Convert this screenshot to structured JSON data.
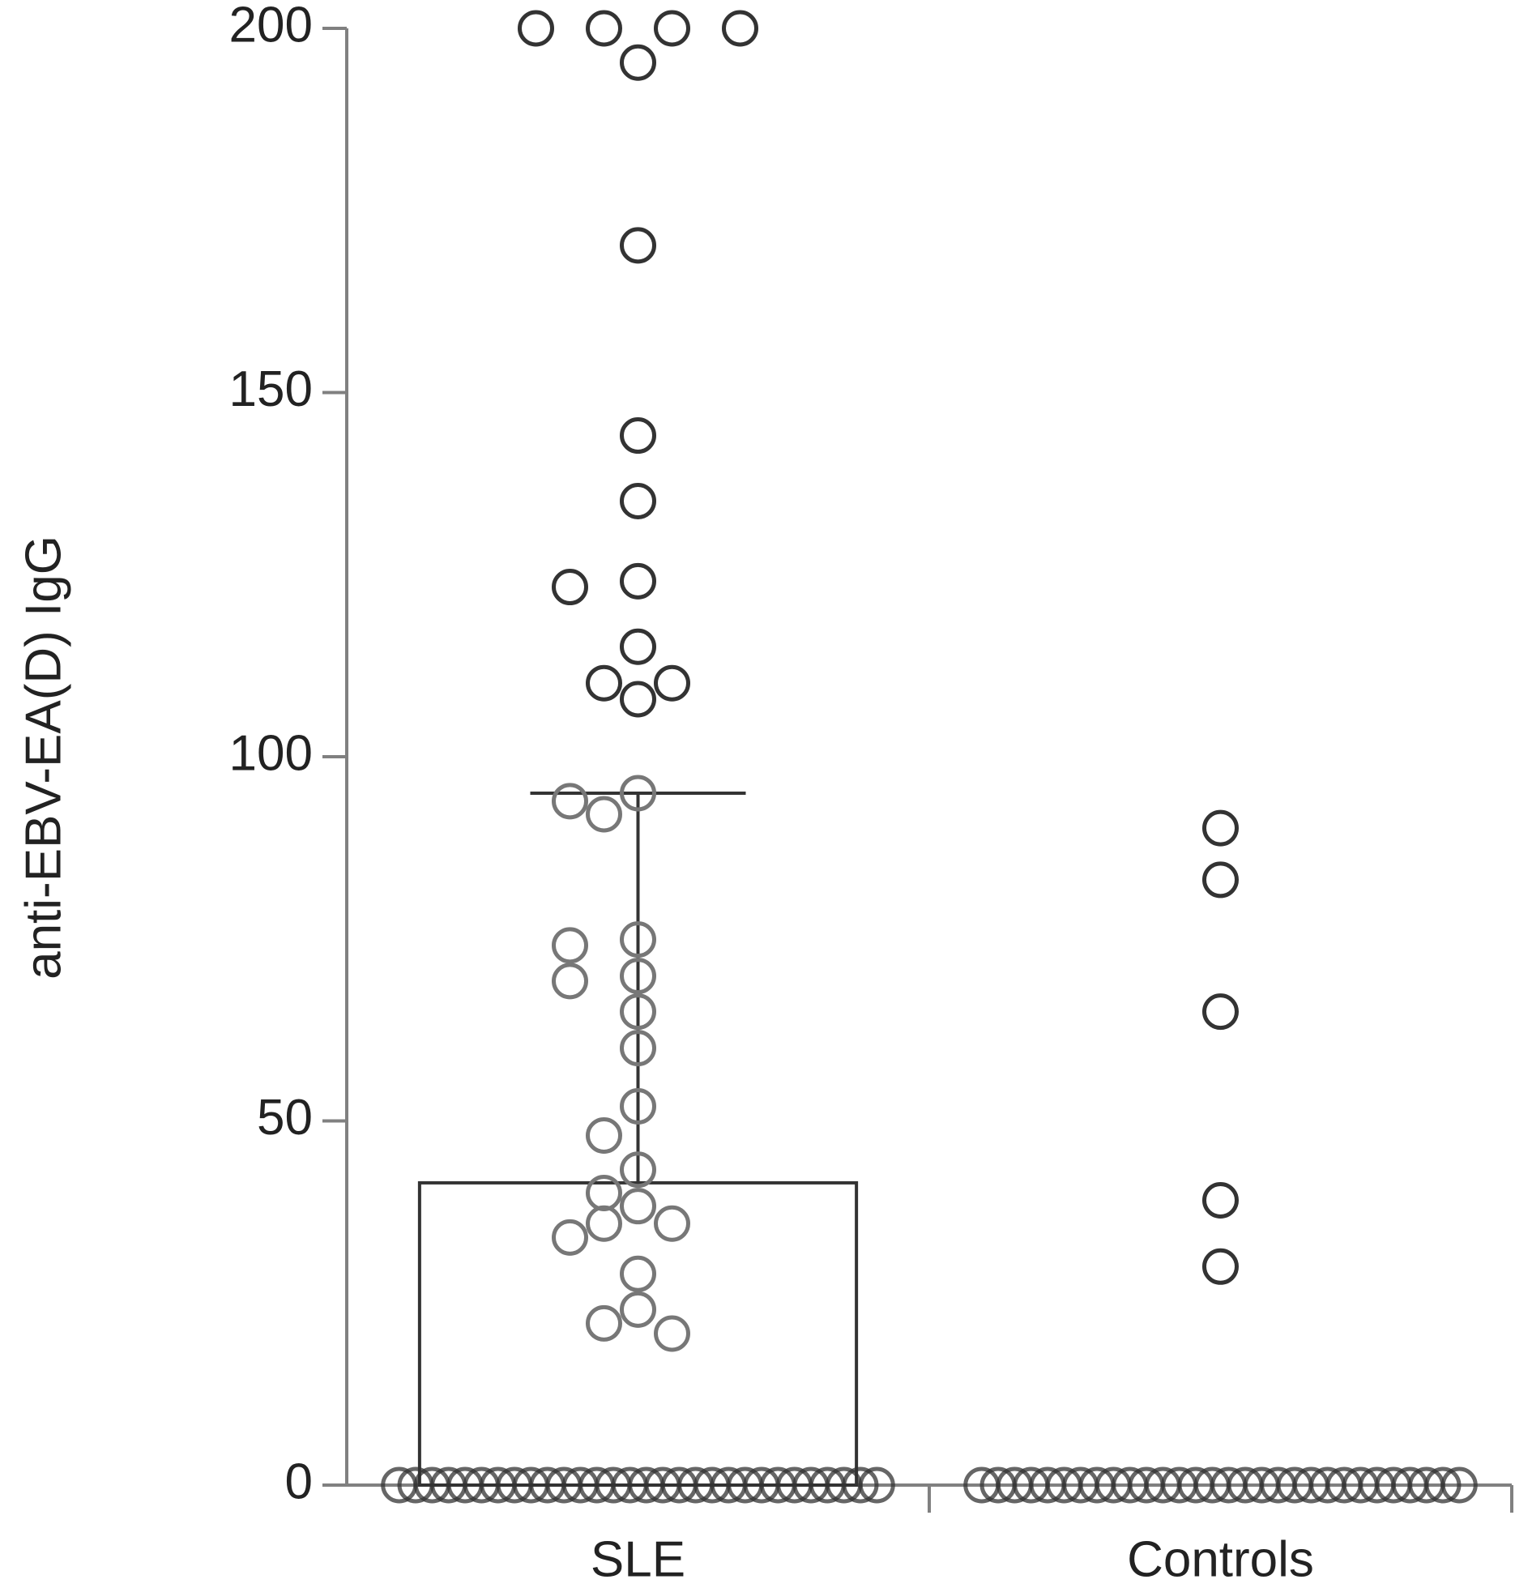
{
  "chart_data": {
    "type": "bar-scatter",
    "y_label": "anti-EBV-EA(D) IgG",
    "categories": [
      "SLE",
      "Controls"
    ],
    "means": [
      41.5,
      null
    ],
    "errors": [
      53.5,
      null
    ],
    "ylim": [
      0,
      200
    ],
    "yticks": [
      0,
      50,
      100,
      150,
      200
    ],
    "point_color": "#333333",
    "axis_color": "#808080",
    "groups": [
      {
        "values": [
          200,
          200,
          200,
          200,
          195.3,
          170.2,
          144.1,
          135.1,
          124.1,
          123.3,
          115.1,
          110.1,
          110.1,
          107.9,
          95,
          93.9,
          92.1,
          74.9,
          74.1,
          69.9,
          69.2,
          65,
          60,
          52,
          48,
          43.3,
          40.1,
          38.3,
          35.9,
          35.9,
          34,
          29,
          24.1,
          22.2,
          20.8,
          0,
          0,
          0,
          0,
          0,
          0,
          0,
          0,
          0,
          0,
          0,
          0,
          0,
          0,
          0,
          0,
          0,
          0,
          0,
          0,
          0,
          0,
          0,
          0,
          0,
          0,
          0,
          0,
          0,
          0
        ]
      },
      {
        "values": [
          90.2,
          83.1,
          65,
          39.1,
          30,
          0,
          0,
          0,
          0,
          0,
          0,
          0,
          0,
          0,
          0,
          0,
          0,
          0,
          0,
          0,
          0,
          0,
          0,
          0,
          0,
          0,
          0,
          0,
          0,
          0,
          0,
          0,
          0,
          0,
          0
        ]
      }
    ]
  }
}
